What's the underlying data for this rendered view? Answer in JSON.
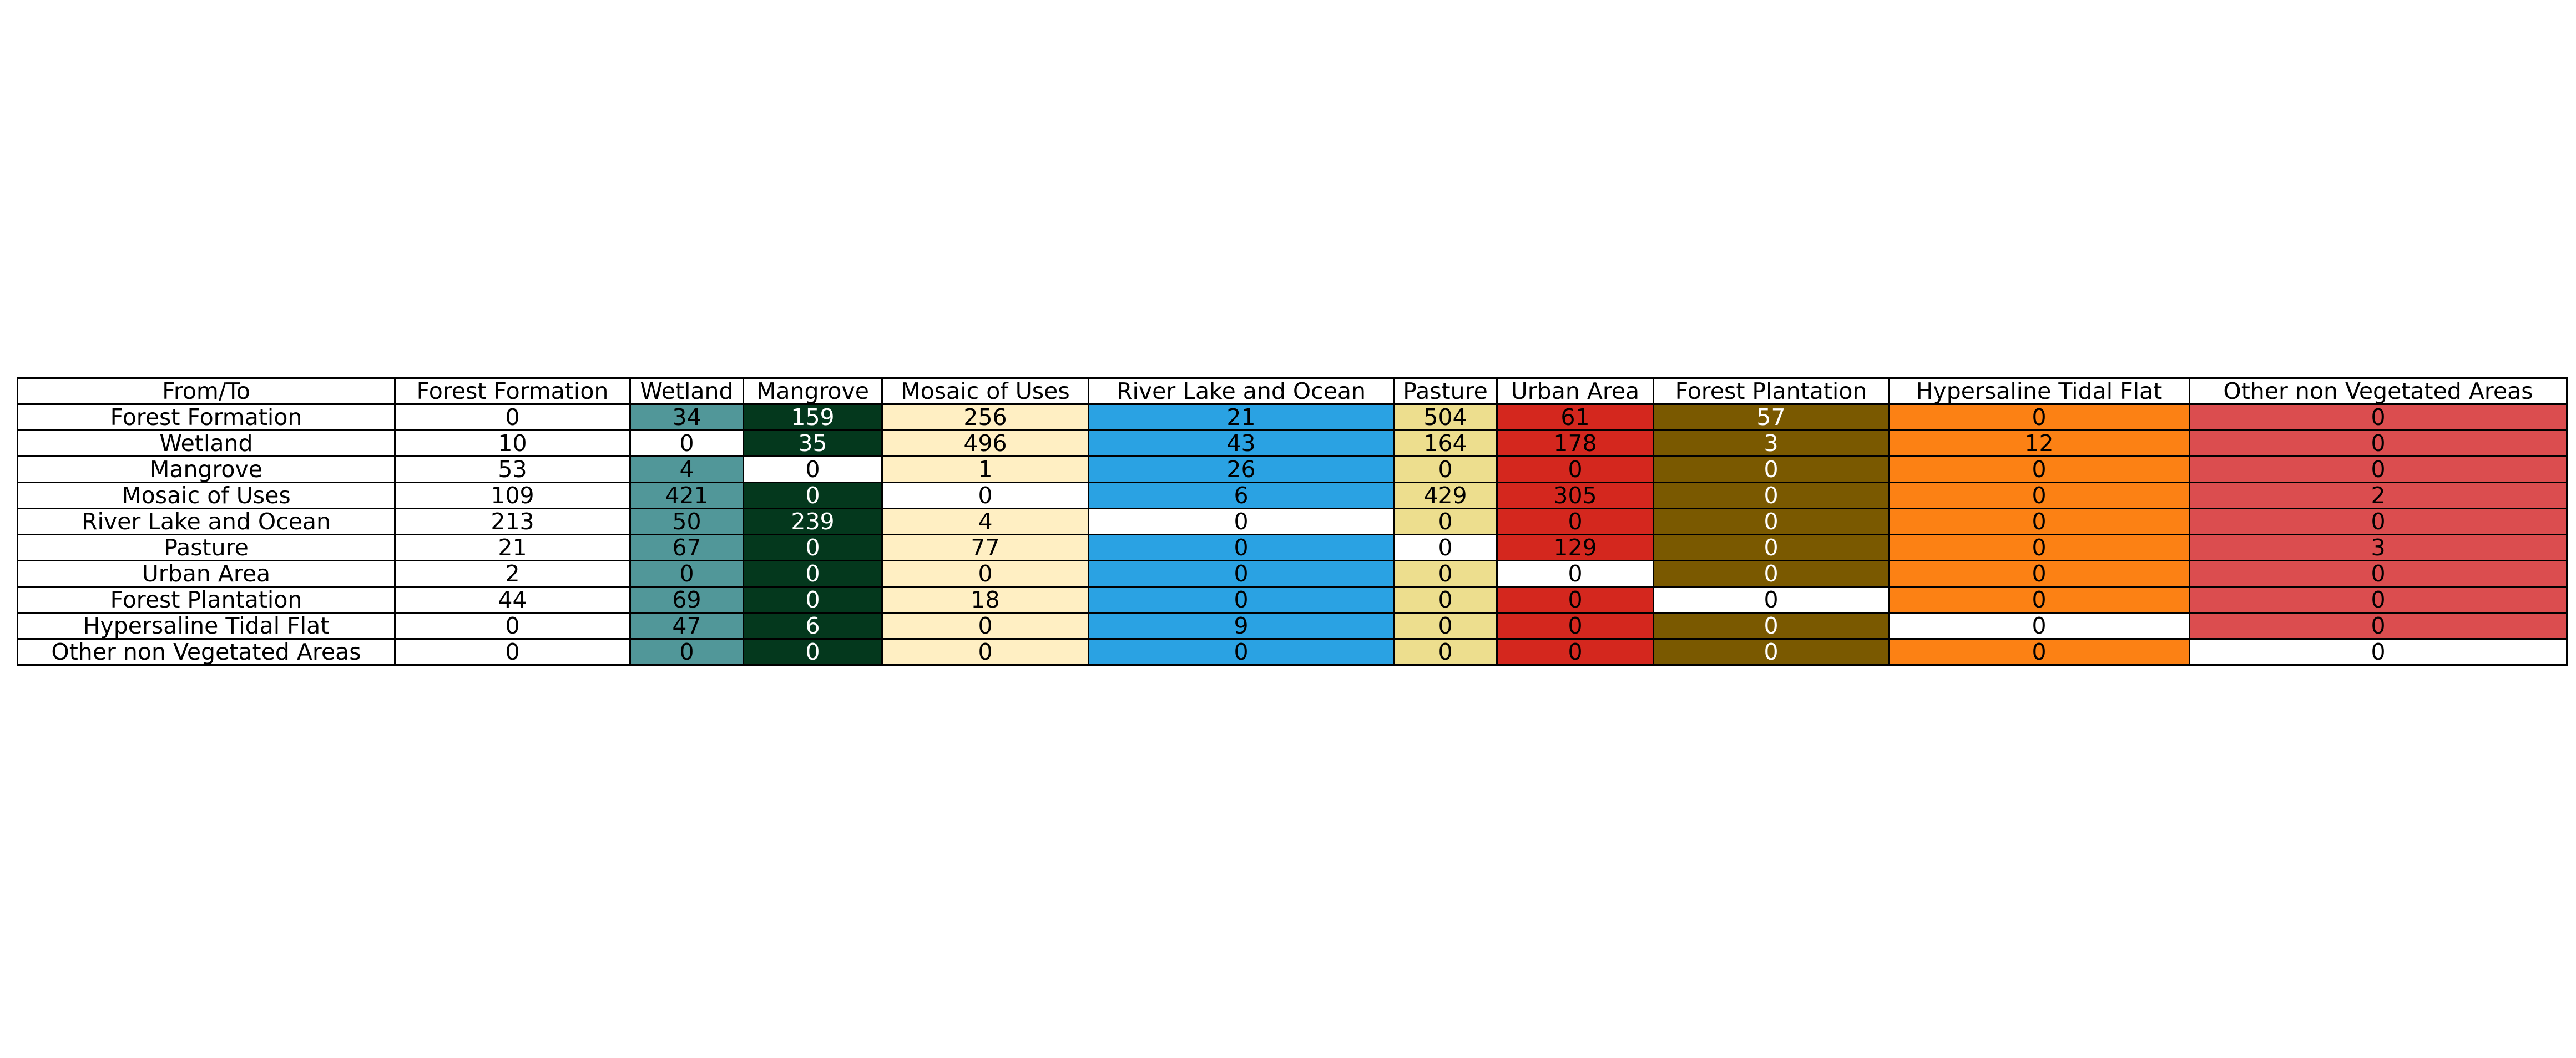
{
  "chart_data": {
    "type": "table",
    "corner_label": "From/To",
    "columns": [
      "Forest Formation",
      "Wetland",
      "Mangrove",
      "Mosaic of Uses",
      "River Lake and Ocean",
      "Pasture",
      "Urban Area",
      "Forest Plantation",
      "Hypersaline Tidal Flat",
      "Other non Vegetated Areas"
    ],
    "rows": [
      {
        "label": "Forest Formation",
        "values": [
          0,
          34,
          159,
          256,
          21,
          504,
          61,
          57,
          0,
          0
        ]
      },
      {
        "label": "Wetland",
        "values": [
          10,
          0,
          35,
          496,
          43,
          164,
          178,
          3,
          12,
          0
        ]
      },
      {
        "label": "Mangrove",
        "values": [
          53,
          4,
          0,
          1,
          26,
          0,
          0,
          0,
          0,
          0
        ]
      },
      {
        "label": "Mosaic of Uses",
        "values": [
          109,
          421,
          0,
          0,
          6,
          429,
          305,
          0,
          0,
          2
        ]
      },
      {
        "label": "River Lake and Ocean",
        "values": [
          213,
          50,
          239,
          4,
          0,
          0,
          0,
          0,
          0,
          0
        ]
      },
      {
        "label": "Pasture",
        "values": [
          21,
          67,
          0,
          77,
          0,
          0,
          129,
          0,
          0,
          3
        ]
      },
      {
        "label": "Urban Area",
        "values": [
          2,
          0,
          0,
          0,
          0,
          0,
          0,
          0,
          0,
          0
        ]
      },
      {
        "label": "Forest Plantation",
        "values": [
          44,
          69,
          0,
          18,
          0,
          0,
          0,
          0,
          0,
          0
        ]
      },
      {
        "label": "Hypersaline Tidal Flat",
        "values": [
          0,
          47,
          6,
          0,
          9,
          0,
          0,
          0,
          0,
          0
        ]
      },
      {
        "label": "Other non Vegetated Areas",
        "values": [
          0,
          0,
          0,
          0,
          0,
          0,
          0,
          0,
          0,
          0
        ]
      }
    ],
    "class_colors": {
      "Forest Formation": "#ffffff",
      "Wetland": "#519799",
      "Mangrove": "#04381d",
      "Mosaic of Uses": "#ffefc3",
      "River Lake and Ocean": "#2aa2e3",
      "Pasture": "#edde8e",
      "Urban Area": "#d4271e",
      "Forest Plantation": "#7a5900",
      "Hypersaline Tidal Flat": "#fc8114",
      "Other non Vegetated Areas": "#db4d4f"
    },
    "diagonal_color": "#ffffff",
    "light_text_classes": [
      "Mangrove",
      "Forest Plantation"
    ]
  }
}
